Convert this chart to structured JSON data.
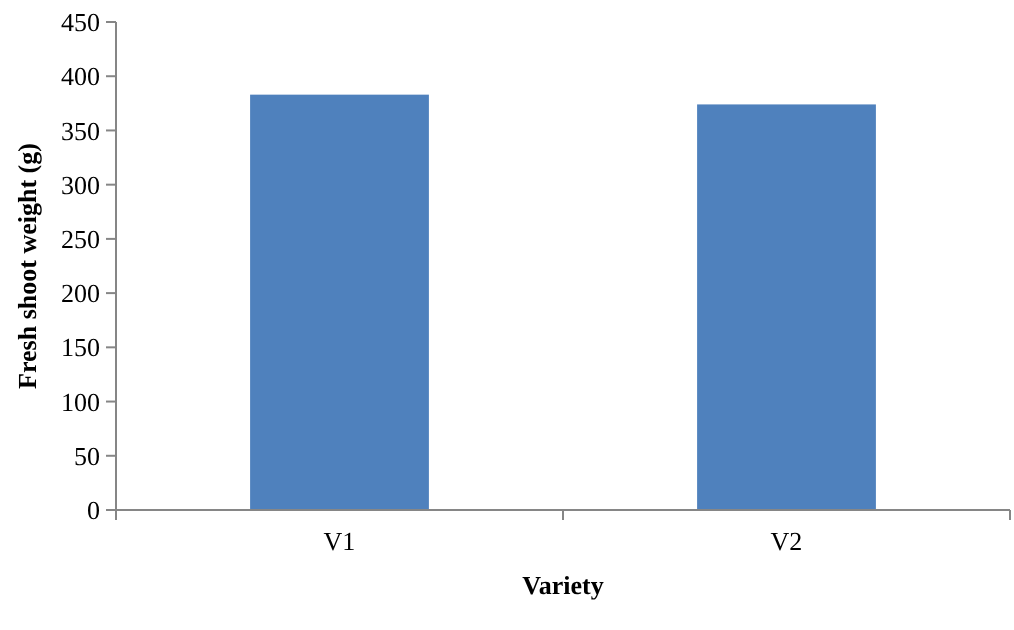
{
  "chart_data": {
    "type": "bar",
    "xlabel": "Variety",
    "ylabel": "Fresh shoot weight (g)",
    "categories": [
      "V1",
      "V2"
    ],
    "values": [
      383,
      374
    ],
    "color": "#4f81bd",
    "ylim": [
      0,
      450
    ],
    "yticks": [
      0,
      50,
      100,
      150,
      200,
      250,
      300,
      350,
      400,
      450
    ],
    "grid": false
  }
}
